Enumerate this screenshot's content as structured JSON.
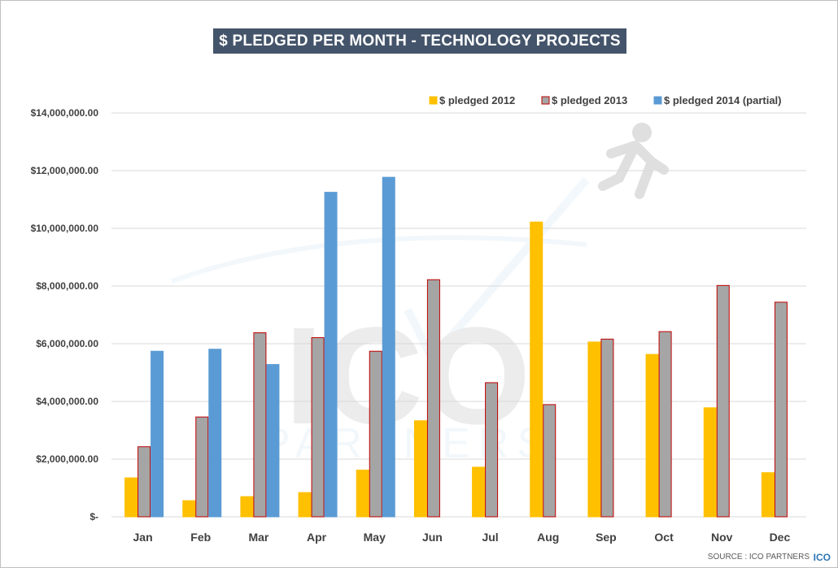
{
  "chart_data": {
    "type": "bar",
    "title": "$ PLEDGED PER MONTH - TECHNOLOGY PROJECTS",
    "xlabel": "",
    "ylabel": "",
    "categories": [
      "Jan",
      "Feb",
      "Mar",
      "Apr",
      "May",
      "Jun",
      "Jul",
      "Aug",
      "Sep",
      "Oct",
      "Nov",
      "Dec"
    ],
    "series": [
      {
        "name": "$ pledged 2012",
        "color": "#ffc000",
        "stroke": "#ffc000",
        "values": [
          1350000,
          560000,
          700000,
          840000,
          1620000,
          3330000,
          1720000,
          10220000,
          6060000,
          5630000,
          3780000,
          1530000
        ]
      },
      {
        "name": "$ pledged 2013",
        "color": "#a5a5a5",
        "stroke": "#c00000",
        "values": [
          2430000,
          3460000,
          6380000,
          6210000,
          5740000,
          8220000,
          4650000,
          3890000,
          6160000,
          6420000,
          8020000,
          7440000
        ]
      },
      {
        "name": "$ pledged 2014 (partial)",
        "color": "#5b9bd5",
        "stroke": "#5b9bd5",
        "values": [
          5740000,
          5810000,
          5280000,
          11250000,
          11770000,
          null,
          null,
          null,
          null,
          null,
          null,
          null
        ]
      }
    ],
    "ylim": [
      0,
      14000000
    ],
    "yticks": [
      {
        "value": 0,
        "label": "$-"
      },
      {
        "value": 2000000,
        "label": "$2,000,000.00"
      },
      {
        "value": 4000000,
        "label": "$4,000,000.00"
      },
      {
        "value": 6000000,
        "label": "$6,000,000.00"
      },
      {
        "value": 8000000,
        "label": "$8,000,000.00"
      },
      {
        "value": 10000000,
        "label": "$10,000,000.00"
      },
      {
        "value": 12000000,
        "label": "$12,000,000.00"
      },
      {
        "value": 14000000,
        "label": "$14,000,000.00"
      }
    ],
    "grid": true,
    "legend": "top-right"
  },
  "footer": {
    "source": "SOURCE : ICO PARTNERS",
    "logo_text": "ICO"
  },
  "watermark": {
    "main": "ICO",
    "sub": "PARTNERS"
  }
}
